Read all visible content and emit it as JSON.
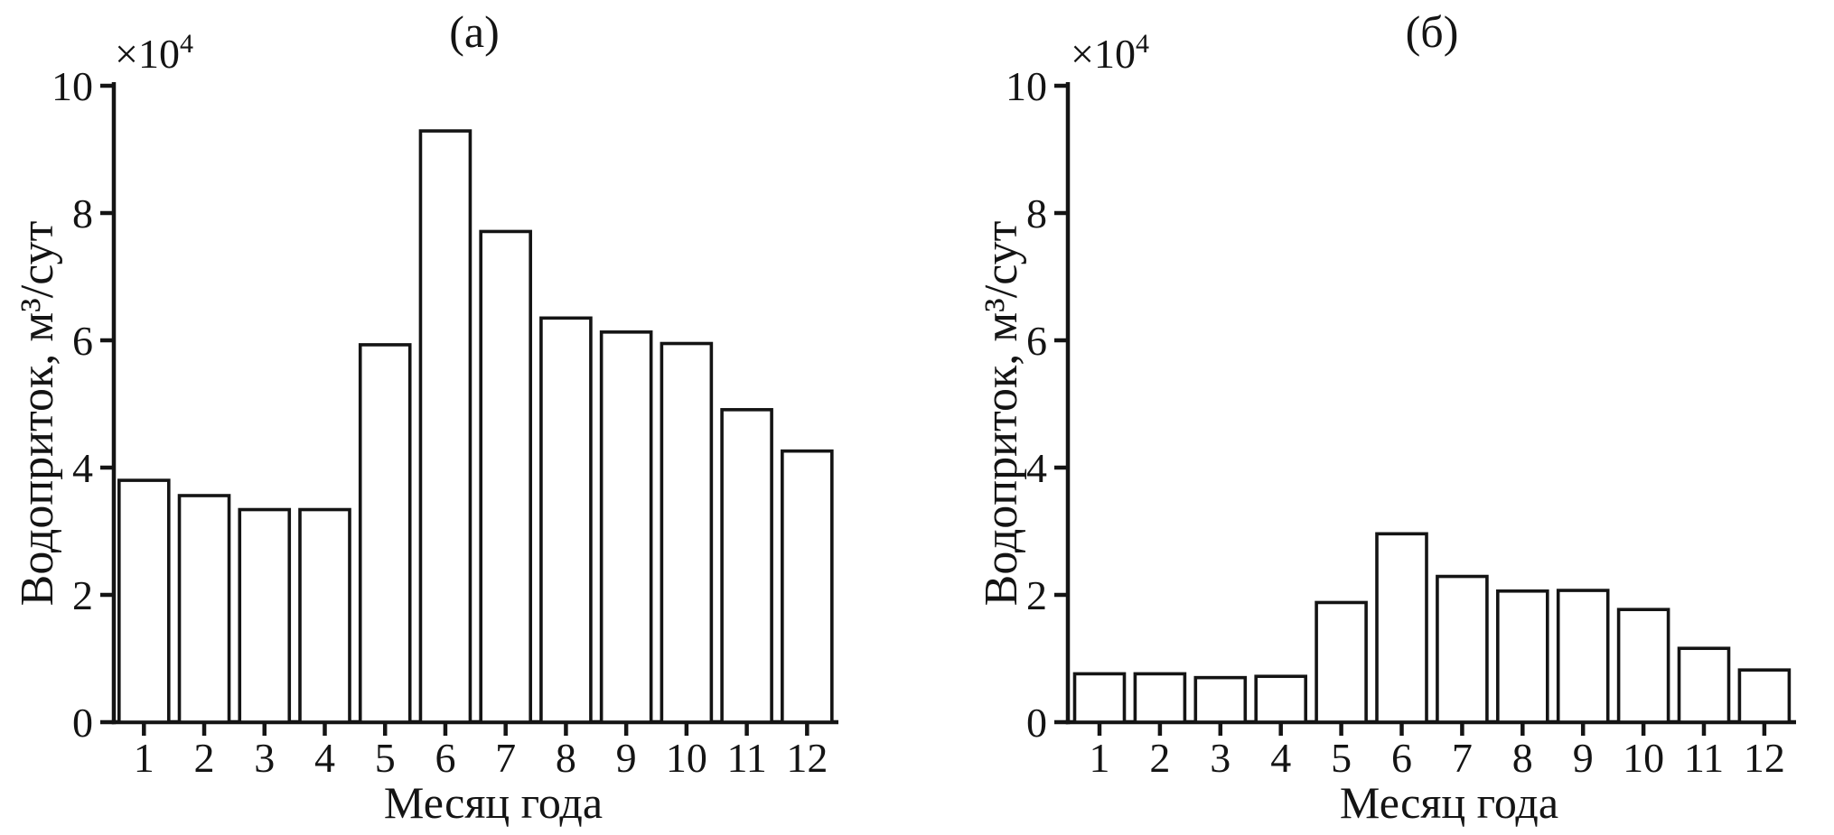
{
  "figure": {
    "background": "#ffffff",
    "text_color": "#141414",
    "axis_color": "#141414",
    "bar_fill": "#ffffff",
    "bar_stroke": "#141414"
  },
  "chart_data": [
    {
      "type": "bar",
      "panel": "left",
      "title": "(а)",
      "xlabel": "Месяц года",
      "ylabel": "Водоприток, м³/сут",
      "y_scale_base": "×10",
      "y_scale_exp": "4",
      "ylim": [
        0,
        10
      ],
      "yticks": [
        0,
        2,
        4,
        6,
        8,
        10
      ],
      "grid": false,
      "legend_position": "none",
      "categories": [
        "1",
        "2",
        "3",
        "4",
        "5",
        "6",
        "7",
        "8",
        "9",
        "10",
        "11",
        "12"
      ],
      "values": [
        3.8,
        3.56,
        3.34,
        3.34,
        5.93,
        9.29,
        7.71,
        6.35,
        6.13,
        5.95,
        4.91,
        4.26
      ]
    },
    {
      "type": "bar",
      "panel": "right",
      "title": "(б)",
      "xlabel": "Месяц года",
      "ylabel": "Водоприток, м³/сут",
      "y_scale_base": "×10",
      "y_scale_exp": "4",
      "ylim": [
        0,
        10
      ],
      "yticks": [
        0,
        2,
        4,
        6,
        8,
        10
      ],
      "grid": false,
      "legend_position": "none",
      "categories": [
        "1",
        "2",
        "3",
        "4",
        "5",
        "6",
        "7",
        "8",
        "9",
        "10",
        "11",
        "12"
      ],
      "values": [
        0.76,
        0.76,
        0.7,
        0.72,
        1.88,
        2.96,
        2.29,
        2.06,
        2.07,
        1.77,
        1.16,
        0.82
      ]
    }
  ]
}
